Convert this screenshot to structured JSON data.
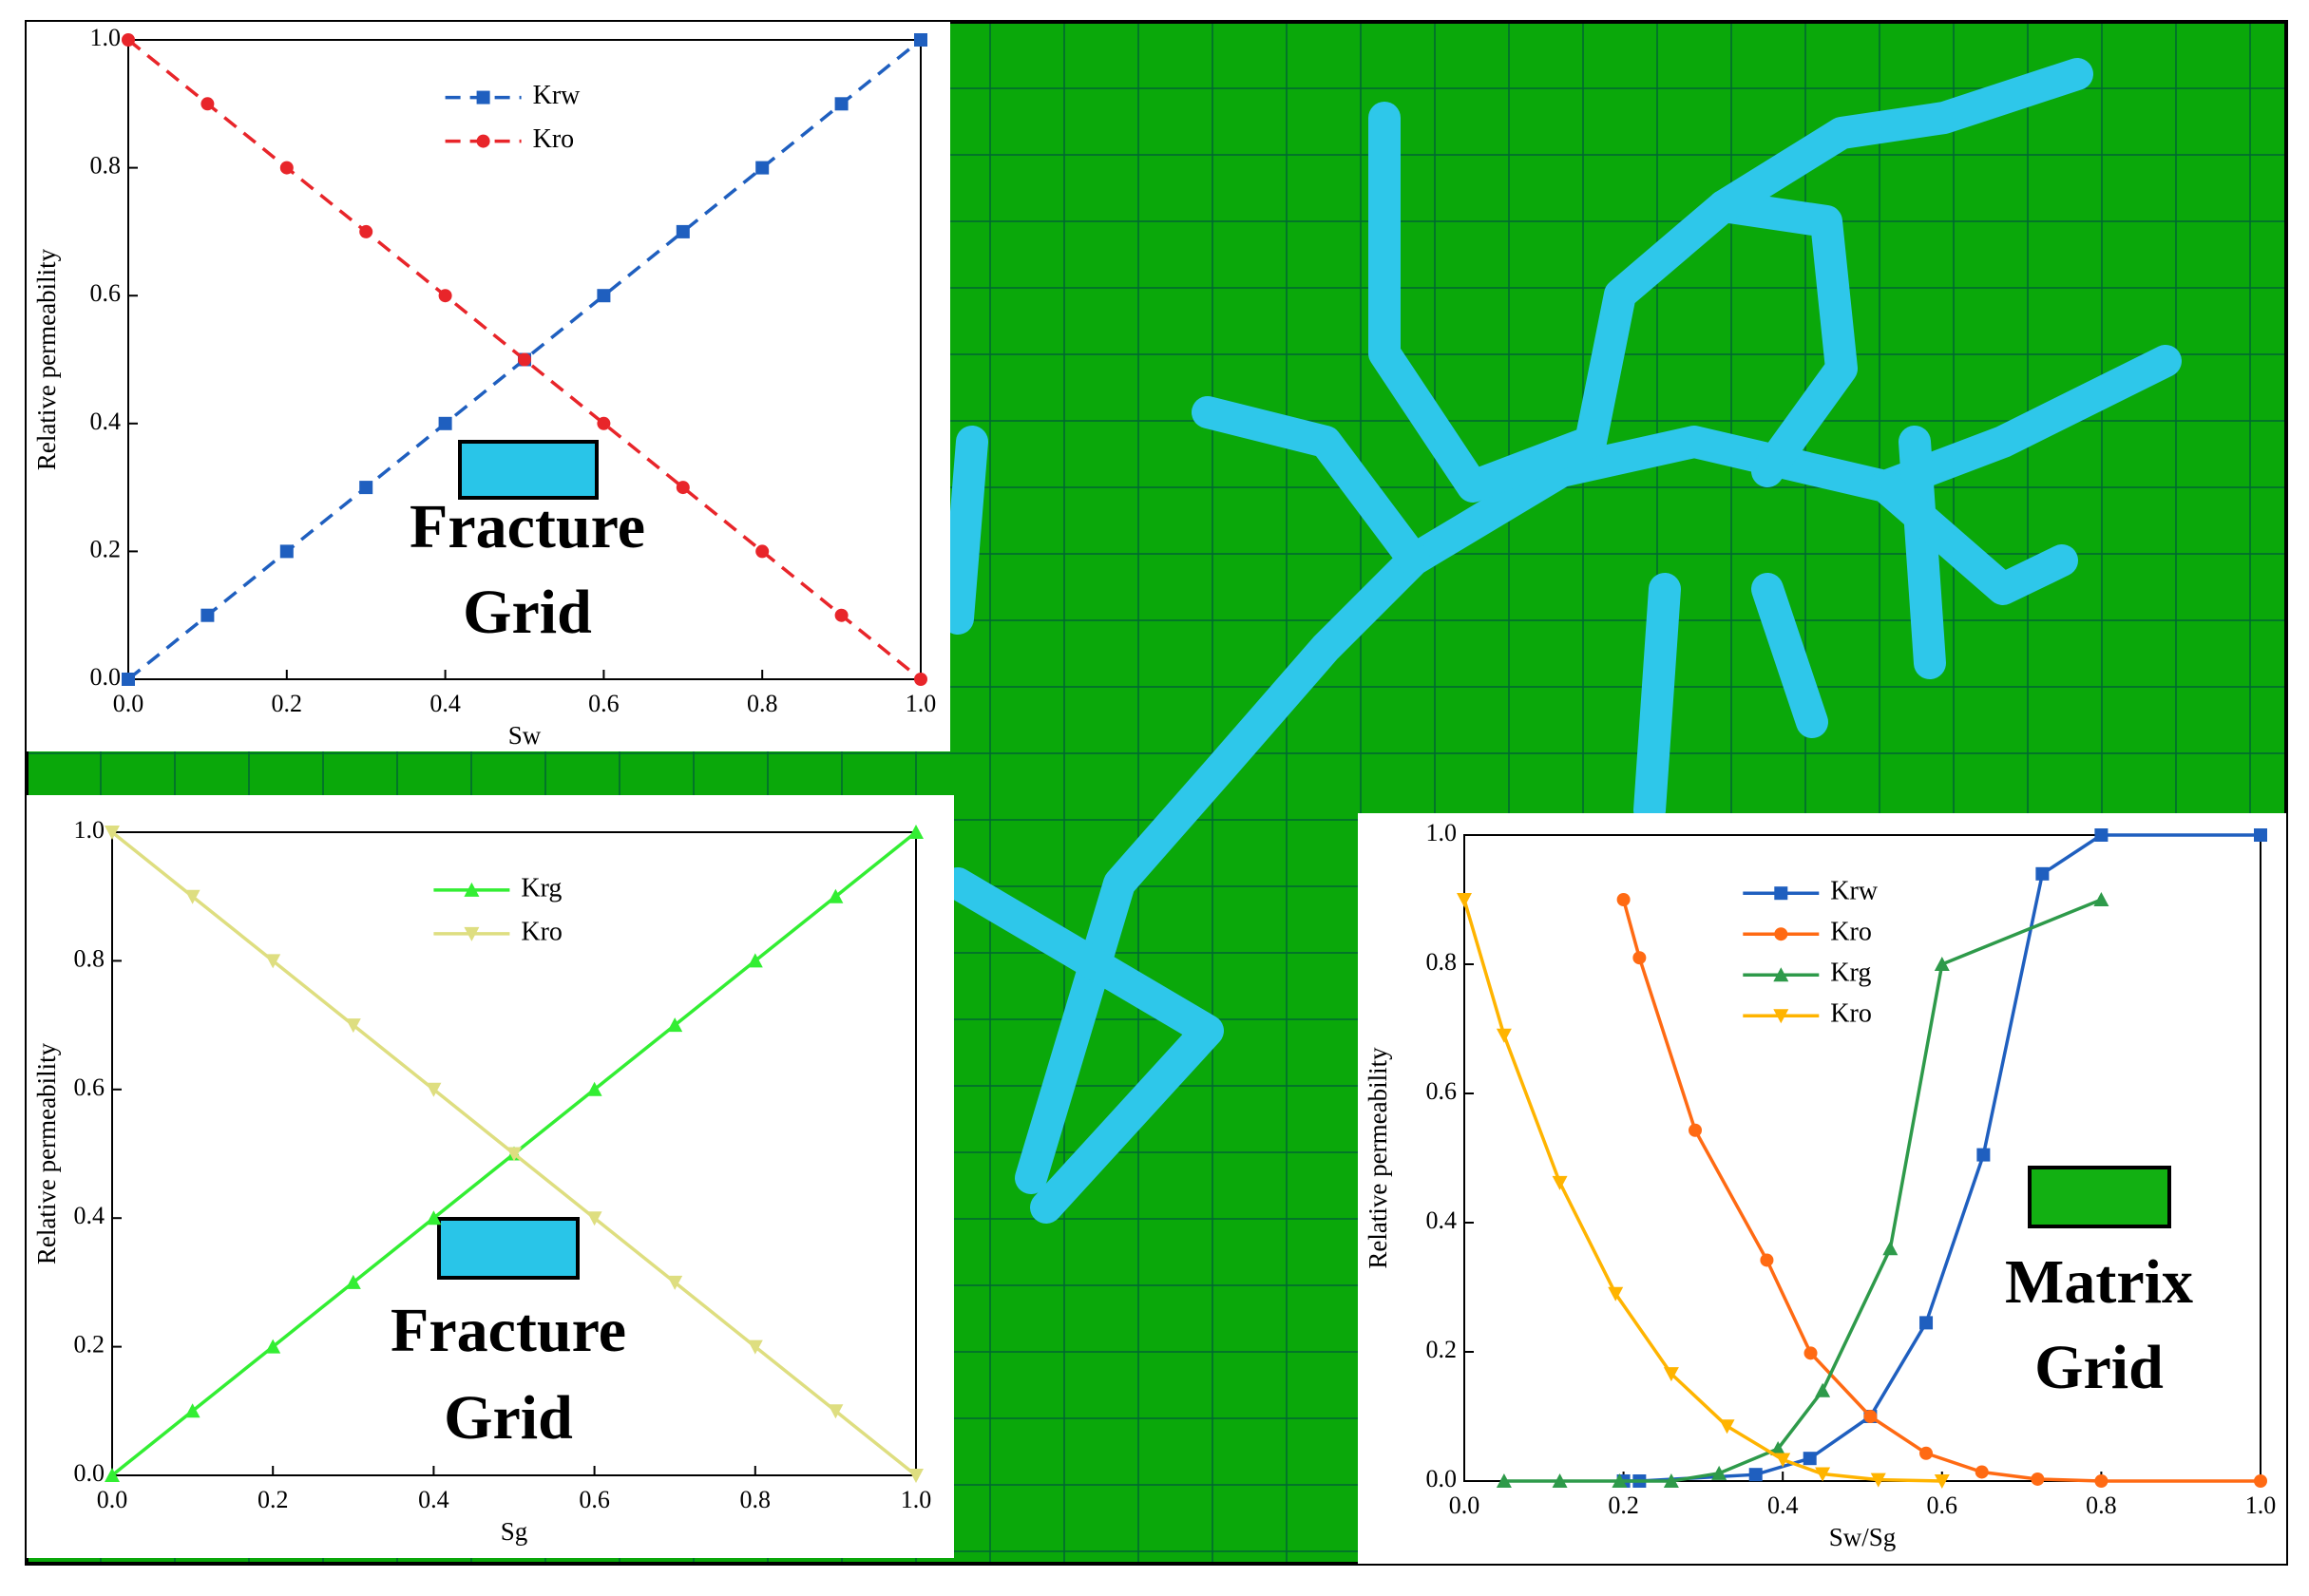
{
  "chart_data": [
    {
      "type": "line",
      "xlabel": "Sw",
      "ylabel": "Relative permeability",
      "xlim": [
        0,
        1
      ],
      "ylim": [
        0,
        1
      ],
      "xticks": [
        {
          "value": 0,
          "label": "0.0"
        },
        0.2,
        0.4,
        0.6,
        0.8,
        {
          "value": 1,
          "label": "1.0"
        }
      ],
      "yticks": [
        {
          "value": 0,
          "label": "0.0"
        },
        0.2,
        0.4,
        0.6,
        0.8,
        {
          "value": 1,
          "label": "1.0"
        }
      ],
      "legend": "top-center",
      "series": [
        {
          "name": "Krw",
          "color": "#1f5fbf",
          "marker": "square",
          "linestyle": "dashed",
          "x": [
            0,
            0.1,
            0.2,
            0.3,
            0.4,
            0.5,
            0.6,
            0.7,
            0.8,
            0.9,
            1.0
          ],
          "values": [
            0,
            0.1,
            0.2,
            0.3,
            0.4,
            0.5,
            0.6,
            0.7,
            0.8,
            0.9,
            1.0
          ]
        },
        {
          "name": "Kro",
          "color": "#e8252a",
          "marker": "circle",
          "linestyle": "dashed",
          "x": [
            0,
            0.1,
            0.2,
            0.3,
            0.4,
            0.5,
            0.6,
            0.7,
            0.8,
            0.9,
            1.0
          ],
          "values": [
            1.0,
            0.9,
            0.8,
            0.7,
            0.6,
            0.5,
            0.4,
            0.3,
            0.2,
            0.1,
            0
          ]
        }
      ],
      "annotation": {
        "lines": [
          "Fracture",
          "Grid"
        ],
        "color": "#29c5e8"
      }
    },
    {
      "type": "line",
      "xlabel": "Sg",
      "ylabel": "Relative permeability",
      "xlim": [
        0,
        1
      ],
      "ylim": [
        0,
        1
      ],
      "xticks": [
        {
          "value": 0,
          "label": "0.0"
        },
        0.2,
        0.4,
        0.6,
        0.8,
        {
          "value": 1,
          "label": "1.0"
        }
      ],
      "yticks": [
        {
          "value": 0,
          "label": "0.0"
        },
        0.2,
        0.4,
        0.6,
        0.8,
        {
          "value": 1,
          "label": "1.0"
        }
      ],
      "legend": "top-center",
      "series": [
        {
          "name": "Krg",
          "color": "#33ee33",
          "marker": "triangle-up",
          "linestyle": "solid",
          "x": [
            0,
            0.1,
            0.2,
            0.3,
            0.4,
            0.5,
            0.6,
            0.7,
            0.8,
            0.9,
            1.0
          ],
          "values": [
            0,
            0.1,
            0.2,
            0.3,
            0.4,
            0.5,
            0.6,
            0.7,
            0.8,
            0.9,
            1.0
          ]
        },
        {
          "name": "Kro",
          "color": "#dede80",
          "marker": "triangle-down",
          "linestyle": "solid",
          "x": [
            0,
            0.1,
            0.2,
            0.3,
            0.4,
            0.5,
            0.6,
            0.7,
            0.8,
            0.9,
            1.0
          ],
          "values": [
            1.0,
            0.9,
            0.8,
            0.7,
            0.6,
            0.5,
            0.4,
            0.3,
            0.2,
            0.1,
            0
          ]
        }
      ],
      "annotation": {
        "lines": [
          "Fracture",
          "Grid"
        ],
        "color": "#29c5e8"
      }
    },
    {
      "type": "line",
      "xlabel": "Sw/Sg",
      "ylabel": "Relative permeability",
      "xlim": [
        0,
        1
      ],
      "ylim": [
        0,
        1
      ],
      "xticks": [
        {
          "value": 0,
          "label": "0.0"
        },
        0.2,
        0.4,
        0.6,
        0.8,
        {
          "value": 1,
          "label": "1.0"
        }
      ],
      "yticks": [
        {
          "value": 0,
          "label": "0.0"
        },
        0.2,
        0.4,
        0.6,
        0.8,
        {
          "value": 1,
          "label": "1.0"
        }
      ],
      "legend": "top-left",
      "series": [
        {
          "name": "Krw",
          "color": "#1f5fbf",
          "marker": "square",
          "linestyle": "solid",
          "x": [
            0.2,
            0.22,
            0.366,
            0.434,
            0.51,
            0.58,
            0.652,
            0.726,
            0.8,
            1.0
          ],
          "values": [
            0,
            0,
            0.01,
            0.035,
            0.1,
            0.245,
            0.505,
            0.94,
            1.0,
            1.0
          ]
        },
        {
          "name": "Kro",
          "color": "#ff6a13",
          "marker": "circle",
          "linestyle": "solid",
          "x": [
            0.2,
            0.22,
            0.29,
            0.38,
            0.435,
            0.51,
            0.58,
            0.65,
            0.72,
            0.8,
            1.0
          ],
          "values": [
            0.9,
            0.81,
            0.543,
            0.342,
            0.198,
            0.1,
            0.043,
            0.014,
            0.003,
            0,
            0
          ]
        },
        {
          "name": "Krg",
          "color": "#2e9a4a",
          "marker": "triangle-up",
          "linestyle": "solid",
          "x": [
            0.05,
            0.12,
            0.195,
            0.26,
            0.32,
            0.394,
            0.45,
            0.535,
            0.6,
            0.8
          ],
          "values": [
            0,
            0,
            0,
            0,
            0.012,
            0.05,
            0.14,
            0.36,
            0.8,
            0.9
          ]
        },
        {
          "name": "Kro",
          "color": "#ffb400",
          "marker": "triangle-down",
          "linestyle": "solid",
          "x": [
            0,
            0.05,
            0.12,
            0.19,
            0.26,
            0.33,
            0.4,
            0.45,
            0.52,
            0.6
          ],
          "values": [
            0.9,
            0.69,
            0.462,
            0.29,
            0.166,
            0.085,
            0.033,
            0.011,
            0.002,
            0
          ]
        }
      ],
      "annotation": {
        "lines": [
          "Matrix",
          "Grid"
        ],
        "color": "#12b012"
      }
    }
  ]
}
